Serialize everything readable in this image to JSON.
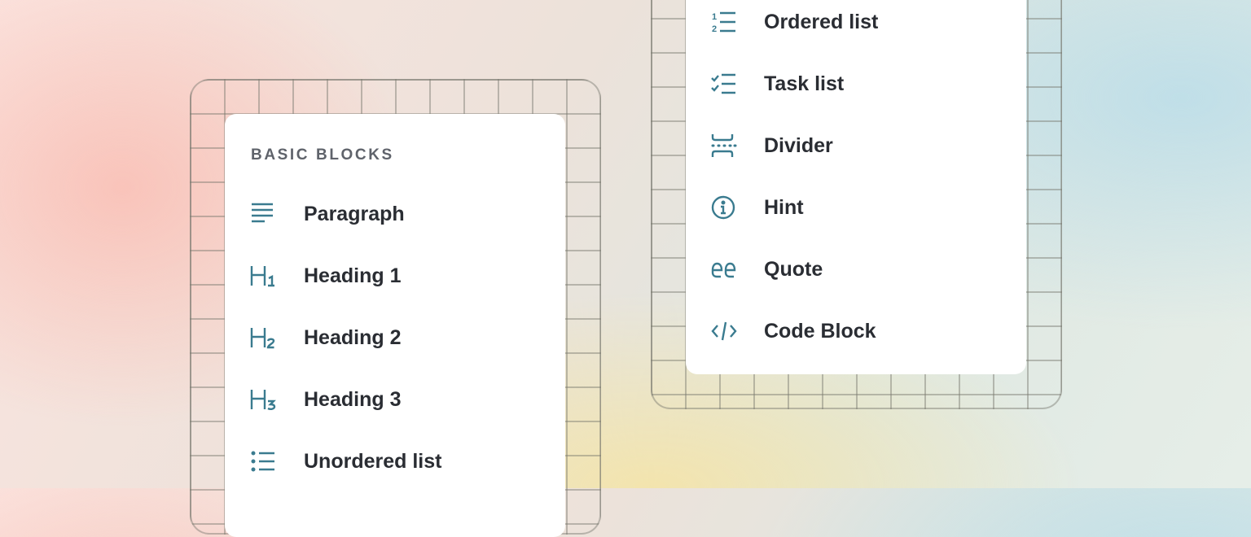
{
  "colors": {
    "icon": "#3a7b8f",
    "text": "#2a2d33",
    "section_label": "#5f636b"
  },
  "left_menu": {
    "section_label": "BASIC BLOCKS",
    "items": [
      {
        "label": "Paragraph",
        "icon": "paragraph-icon"
      },
      {
        "label": "Heading 1",
        "icon": "heading-1-icon"
      },
      {
        "label": "Heading 2",
        "icon": "heading-2-icon"
      },
      {
        "label": "Heading 3",
        "icon": "heading-3-icon"
      },
      {
        "label": "Unordered list",
        "icon": "unordered-list-icon"
      }
    ]
  },
  "right_menu": {
    "items": [
      {
        "label": "Ordered list",
        "icon": "ordered-list-icon"
      },
      {
        "label": "Task list",
        "icon": "task-list-icon"
      },
      {
        "label": "Divider",
        "icon": "divider-icon"
      },
      {
        "label": "Hint",
        "icon": "info-icon"
      },
      {
        "label": "Quote",
        "icon": "quote-icon"
      },
      {
        "label": "Code Block",
        "icon": "code-icon"
      }
    ]
  }
}
